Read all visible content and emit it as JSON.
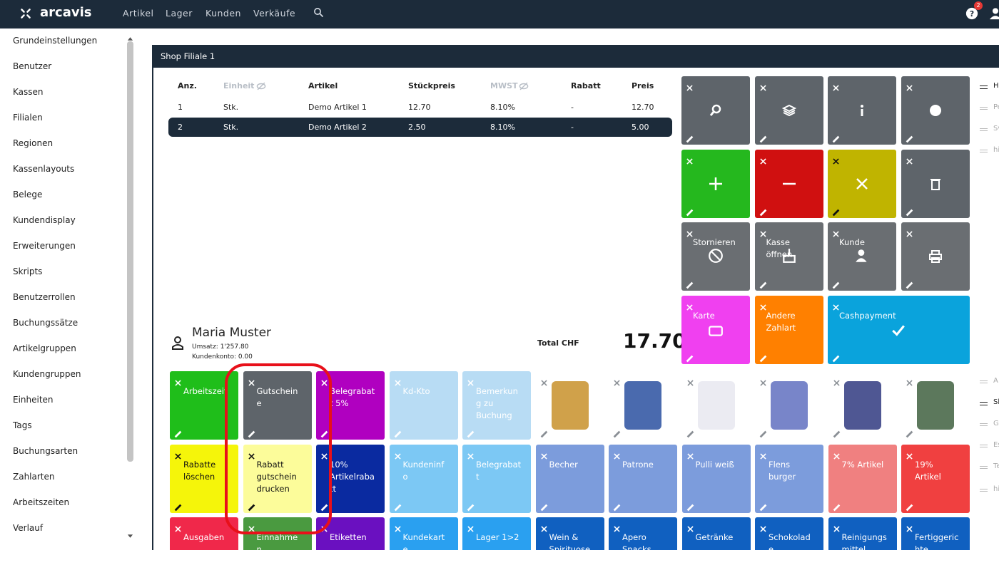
{
  "nav": {
    "brand": "arcavis",
    "links": [
      "Artikel",
      "Lager",
      "Kunden",
      "Verkäufe"
    ],
    "badge": "2"
  },
  "sidebar": {
    "items": [
      "Grundeinstellungen",
      "Benutzer",
      "Kassen",
      "Filialen",
      "Regionen",
      "Kassenlayouts",
      "Belege",
      "Kundendisplay",
      "Erweiterungen",
      "Skripts",
      "Benutzerrollen",
      "Buchungssätze",
      "Artikelgruppen",
      "Kundengruppen",
      "Einheiten",
      "Tags",
      "Buchungsarten",
      "Zahlarten",
      "Arbeitszeiten",
      "Verlauf"
    ]
  },
  "panel": {
    "title": "Shop Filiale 1",
    "table": {
      "headers": [
        "Anz.",
        "Einheit",
        "Artikel",
        "Stückpreis",
        "MWST",
        "Rabatt",
        "Preis"
      ],
      "rows": [
        [
          "1",
          "Stk.",
          "Demo Artikel 1",
          "12.70",
          "8.10%",
          "-",
          "12.70"
        ],
        [
          "2",
          "Stk.",
          "Demo Artikel 2",
          "2.50",
          "8.10%",
          "-",
          "5.00"
        ]
      ]
    },
    "customer": {
      "name": "Maria Muster",
      "sales": "Umsatz: 1'257.80",
      "account": "Kundenkonto: 0.00"
    },
    "total": {
      "label": "Total CHF",
      "value": "17.70"
    },
    "function_keys": [
      [
        {
          "color": "#5e646a"
        },
        {
          "color": "#5e646a"
        },
        {
          "color": "#5e646a"
        },
        {
          "color": "#5e646a"
        }
      ],
      [
        {
          "color": "#25b81e"
        },
        {
          "color": "#d01010"
        },
        {
          "color": "#c0b400"
        },
        {
          "color": "#5e646a"
        }
      ],
      [
        {
          "label": "Stornieren",
          "color": "#6a6e72"
        },
        {
          "label": "Kasse öffnen",
          "color": "#6a6e72"
        },
        {
          "label": "Kunde",
          "color": "#6a6e72"
        },
        {
          "color": "#6a6e72"
        }
      ],
      [
        {
          "label": "Karte",
          "color": "#f040f0"
        },
        {
          "label": "Andere Zahlart",
          "color": "#ff8000"
        },
        {
          "label": "Cashpayment",
          "color": "#0aa3dc"
        }
      ]
    ],
    "keys": [
      [
        {
          "label": "Arbeitszeit",
          "color": "#1fbe1a"
        },
        {
          "label": "Gutscheine",
          "color": "#5e646a"
        },
        {
          "label": "Belegrabatt 5%",
          "color": "#b000c0"
        },
        {
          "label": "Kd-Kto",
          "color": "#b8dcf4"
        },
        {
          "label": "Bemerkung zu Buchung",
          "color": "#b8dcf4"
        },
        {
          "color": "#ffffff"
        },
        {
          "color": "#ffffff"
        },
        {
          "color": "#ffffff"
        },
        {
          "color": "#ffffff"
        },
        {
          "color": "#ffffff"
        },
        {
          "color": "#ffffff"
        }
      ],
      [
        {
          "label": "Rabatte löschen",
          "color": "#f5f50a"
        },
        {
          "label": "Rabatt gutschein drucken",
          "color": "#fcfc9a"
        },
        {
          "label": "10% Artikelrabatt",
          "color": "#0a2aa0"
        },
        {
          "label": "Kundeninfo",
          "color": "#7cc8f4"
        },
        {
          "label": "Belegrabatt",
          "color": "#7cc8f4"
        },
        {
          "label": "Becher",
          "color": "#7c9cdc"
        },
        {
          "label": "Patrone",
          "color": "#7c9cdc"
        },
        {
          "label": "Pulli weiß",
          "color": "#7c9cdc"
        },
        {
          "label": "Flens burger",
          "color": "#7c9cdc"
        },
        {
          "label": "7% Artikel",
          "color": "#f08080"
        },
        {
          "label": "19% Artikel",
          "color": "#f04040"
        }
      ],
      [
        {
          "label": "Ausgaben",
          "color": "#f0284a"
        },
        {
          "label": "Einnahmen",
          "color": "#4a9a40"
        },
        {
          "label": "Etiketten",
          "color": "#6a10c0"
        },
        {
          "label": "Kundekarte",
          "color": "#2aa0f0"
        },
        {
          "label": "Lager 1>2",
          "color": "#2aa0f0"
        },
        {
          "label": "Wein & Spirituosen",
          "color": "#1060c0"
        },
        {
          "label": "Apero Snacks",
          "color": "#1060c0"
        },
        {
          "label": "Getränke",
          "color": "#1060c0"
        },
        {
          "label": "Schokolade",
          "color": "#1060c0"
        },
        {
          "label": "Reinigungsmittel",
          "color": "#1060c0"
        },
        {
          "label": "Fertiggerichte",
          "color": "#1060c0"
        }
      ]
    ],
    "side_list": [
      [
        "H",
        "Pe",
        "Sv",
        "hi"
      ],
      [
        "A",
        "Sh",
        "G",
        "Es",
        "Te",
        "hi"
      ]
    ]
  }
}
